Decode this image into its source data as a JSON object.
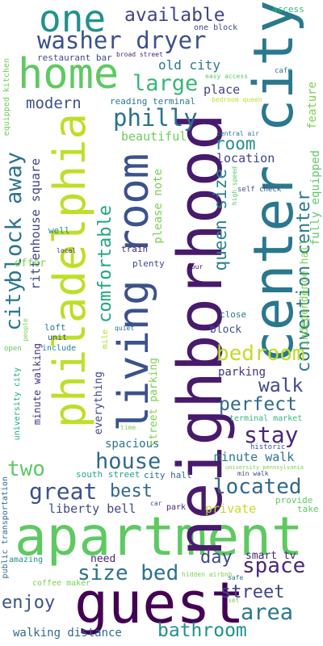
{
  "words": [
    {
      "text": "apartment",
      "color": "#5ec962"
    },
    {
      "text": "guest",
      "color": "#440154"
    },
    {
      "text": "neighborhood",
      "color": "#481a6c"
    },
    {
      "text": "center city",
      "color": "#2a788e"
    },
    {
      "text": "philadelphia",
      "color": "#bddf26"
    },
    {
      "text": "living room",
      "color": "#3b528b"
    },
    {
      "text": "home",
      "color": "#5ec962"
    },
    {
      "text": "one",
      "color": "#21918c"
    },
    {
      "text": "washer dryer",
      "color": "#3b528b"
    },
    {
      "text": "available",
      "color": "#414487"
    },
    {
      "text": "philly",
      "color": "#2c728e"
    },
    {
      "text": "large",
      "color": "#35b779"
    },
    {
      "text": "modern",
      "color": "#3b528b"
    },
    {
      "text": "old city",
      "color": "#2a788e"
    },
    {
      "text": "place",
      "color": "#414487"
    },
    {
      "text": "block away",
      "color": "#2c728e"
    },
    {
      "text": "comfortable",
      "color": "#21a585"
    },
    {
      "text": "room",
      "color": "#21918c"
    },
    {
      "text": "beautiful",
      "color": "#6ece58"
    },
    {
      "text": "location",
      "color": "#414487"
    },
    {
      "text": "queen size",
      "color": "#26828e"
    },
    {
      "text": "convention center",
      "color": "#2a788e"
    },
    {
      "text": "independence hall",
      "color": "#7ad151"
    },
    {
      "text": "fully equipped",
      "color": "#5ec962"
    },
    {
      "text": "feature",
      "color": "#7ad151"
    },
    {
      "text": "rittenhouse square",
      "color": "#414487"
    },
    {
      "text": "city",
      "color": "#2a788e"
    },
    {
      "text": "bedroom",
      "color": "#bddf26"
    },
    {
      "text": "walk",
      "color": "#3e4989"
    },
    {
      "text": "perfect",
      "color": "#31688e"
    },
    {
      "text": "stay",
      "color": "#482878"
    },
    {
      "text": "house",
      "color": "#31688e"
    },
    {
      "text": "two",
      "color": "#5ec962"
    },
    {
      "text": "great",
      "color": "#3b528b"
    },
    {
      "text": "best",
      "color": "#31688e"
    },
    {
      "text": "located",
      "color": "#31688e"
    },
    {
      "text": "space",
      "color": "#482878"
    },
    {
      "text": "size bed",
      "color": "#2c728e"
    },
    {
      "text": "day",
      "color": "#3e4989"
    },
    {
      "text": "enjoy",
      "color": "#3b528b"
    },
    {
      "text": "area",
      "color": "#2a788e"
    },
    {
      "text": "street",
      "color": "#414487"
    },
    {
      "text": "bathroom",
      "color": "#21918c"
    },
    {
      "text": "walking distance",
      "color": "#31688e"
    },
    {
      "text": "liberty bell",
      "color": "#3e4989"
    },
    {
      "text": "private",
      "color": "#bddf26"
    },
    {
      "text": "minute walk",
      "color": "#2c728e"
    },
    {
      "text": "spacious",
      "color": "#2c728e"
    },
    {
      "text": "parking",
      "color": "#46327e"
    },
    {
      "text": "restaurant bar",
      "color": "#3e4989"
    },
    {
      "text": "reading terminal",
      "color": "#2a788e"
    },
    {
      "text": "one block",
      "color": "#3e4989"
    },
    {
      "text": "broad street",
      "color": "#482878"
    },
    {
      "text": "easy access",
      "color": "#5ec962"
    },
    {
      "text": "access",
      "color": "#35b779"
    },
    {
      "text": "cafe",
      "color": "#2a788e"
    },
    {
      "text": "bedroom queen",
      "color": "#bddf26"
    },
    {
      "text": "equipped kitchen",
      "color": "#6ece58"
    },
    {
      "text": "central air",
      "color": "#2a788e"
    },
    {
      "text": "high speed",
      "color": "#5ec962"
    },
    {
      "text": "self check",
      "color": "#3b528b"
    },
    {
      "text": "please note",
      "color": "#7ad151"
    },
    {
      "text": "well",
      "color": "#26828e"
    },
    {
      "text": "train",
      "color": "#482878"
    },
    {
      "text": "plenty",
      "color": "#3e4989"
    },
    {
      "text": "offer",
      "color": "#7ad151"
    },
    {
      "text": "local",
      "color": "#482878"
    },
    {
      "text": "hour",
      "color": "#440154"
    },
    {
      "text": "mile",
      "color": "#b5de2b"
    },
    {
      "text": "loft",
      "color": "#2a788e"
    },
    {
      "text": "people",
      "color": "#7ad151"
    },
    {
      "text": "quiet",
      "color": "#2c728e"
    },
    {
      "text": "close",
      "color": "#2a788e"
    },
    {
      "text": "block",
      "color": "#3b528b"
    },
    {
      "text": "unit",
      "color": "#3b528b"
    },
    {
      "text": "include",
      "color": "#26828e"
    },
    {
      "text": "open",
      "color": "#5ec962"
    },
    {
      "text": "minute walking",
      "color": "#46327e"
    },
    {
      "text": "university city",
      "color": "#21a585"
    },
    {
      "text": "everything",
      "color": "#3e4989"
    },
    {
      "text": "street parking",
      "color": "#7ad151"
    },
    {
      "text": "terminal market",
      "color": "#35b779"
    },
    {
      "text": "time",
      "color": "#7ad151"
    },
    {
      "text": "historic",
      "color": "#3b528b"
    },
    {
      "text": "university pennsylvania",
      "color": "#7ad151"
    },
    {
      "text": "min walk",
      "color": "#3e4989"
    },
    {
      "text": "south street",
      "color": "#21a585"
    },
    {
      "text": "city hall",
      "color": "#31688e"
    },
    {
      "text": "provide",
      "color": "#5ec962"
    },
    {
      "text": "take",
      "color": "#5ec962"
    },
    {
      "text": "car",
      "color": "#3e4989"
    },
    {
      "text": "park",
      "color": "#482878"
    },
    {
      "text": "public transportation",
      "color": "#31688e"
    },
    {
      "text": "need",
      "color": "#482878"
    },
    {
      "text": "smart tv",
      "color": "#482878"
    },
    {
      "text": "amazing",
      "color": "#21918c"
    },
    {
      "text": "coffee maker",
      "color": "#7ad151"
    },
    {
      "text": "hidden airbnb",
      "color": "#7ad151"
    },
    {
      "text": "safe",
      "color": "#2a788e"
    },
    {
      "text": "set",
      "color": "#7ad151"
    }
  ]
}
